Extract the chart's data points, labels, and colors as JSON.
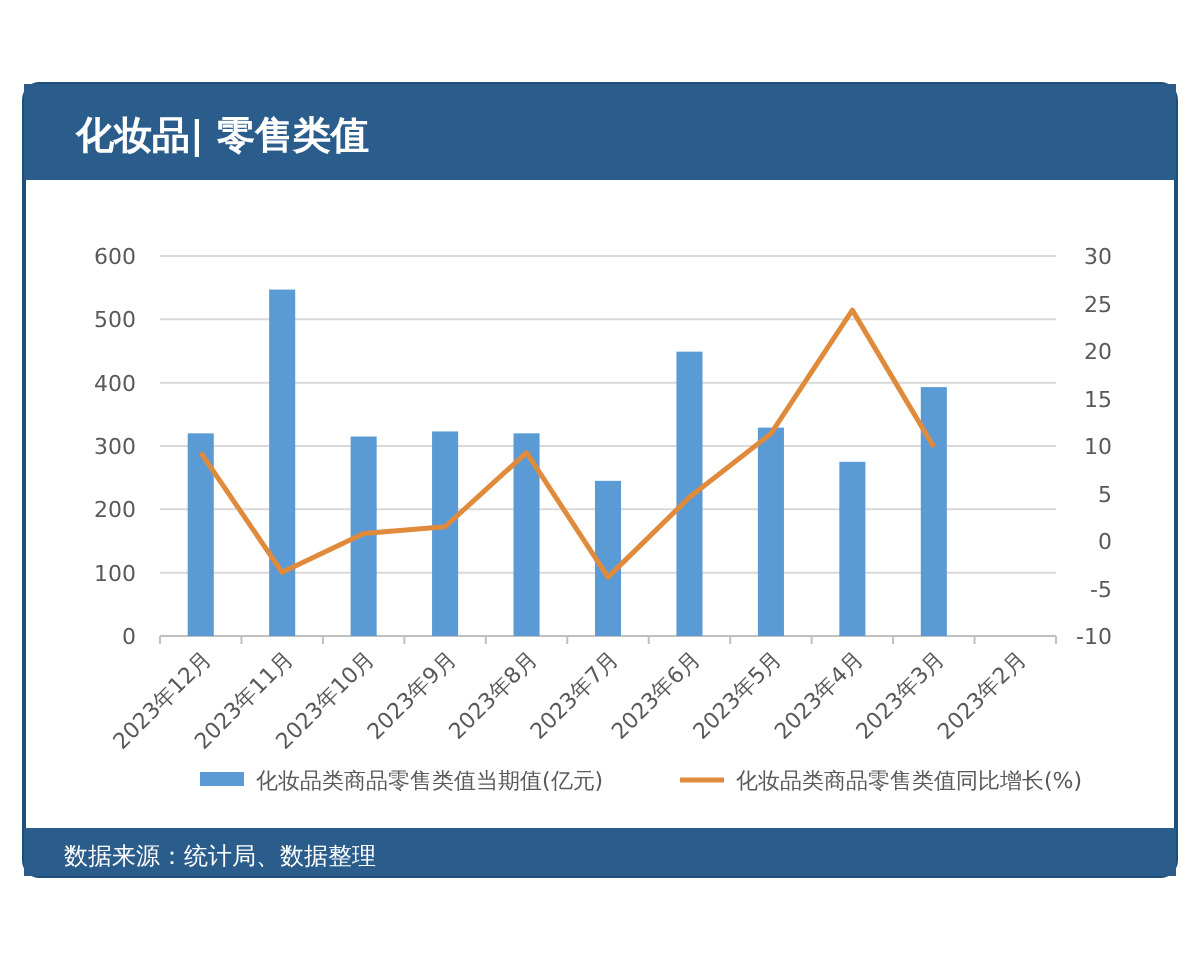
{
  "chart_data": {
    "type": "bar",
    "title": "化妆品| 零售类值",
    "categories": [
      "2023年12月",
      "2023年11月",
      "2023年10月",
      "2023年9月",
      "2023年8月",
      "2023年7月",
      "2023年6月",
      "2023年5月",
      "2023年4月",
      "2023年3月",
      "2023年2月"
    ],
    "series": [
      {
        "name": "化妆品类商品零售类值当期值(亿元)",
        "color": "#5b9bd5",
        "values": [
          320,
          547,
          315,
          323,
          320,
          245,
          449,
          329,
          275,
          393,
          null
        ]
      },
      {
        "name": "化妆品类商品零售类值同比增长(%)",
        "type": "line",
        "axis": "y2",
        "color": "#e08a3c",
        "values": [
          9.3,
          -3.3,
          0.8,
          1.5,
          9.3,
          -3.8,
          4.6,
          11.3,
          24.3,
          9.9,
          null
        ]
      }
    ],
    "ylim": [
      0,
      600
    ],
    "yticks": [
      0,
      100,
      200,
      300,
      400,
      500,
      600
    ],
    "y2lim": [
      -10,
      30
    ],
    "y2ticks": [
      -10,
      -5,
      0,
      5,
      10,
      15,
      20,
      25,
      30
    ],
    "grid": "y",
    "legend": "bottom",
    "annotations": [
      "数据来源：统计局、数据整理"
    ]
  }
}
